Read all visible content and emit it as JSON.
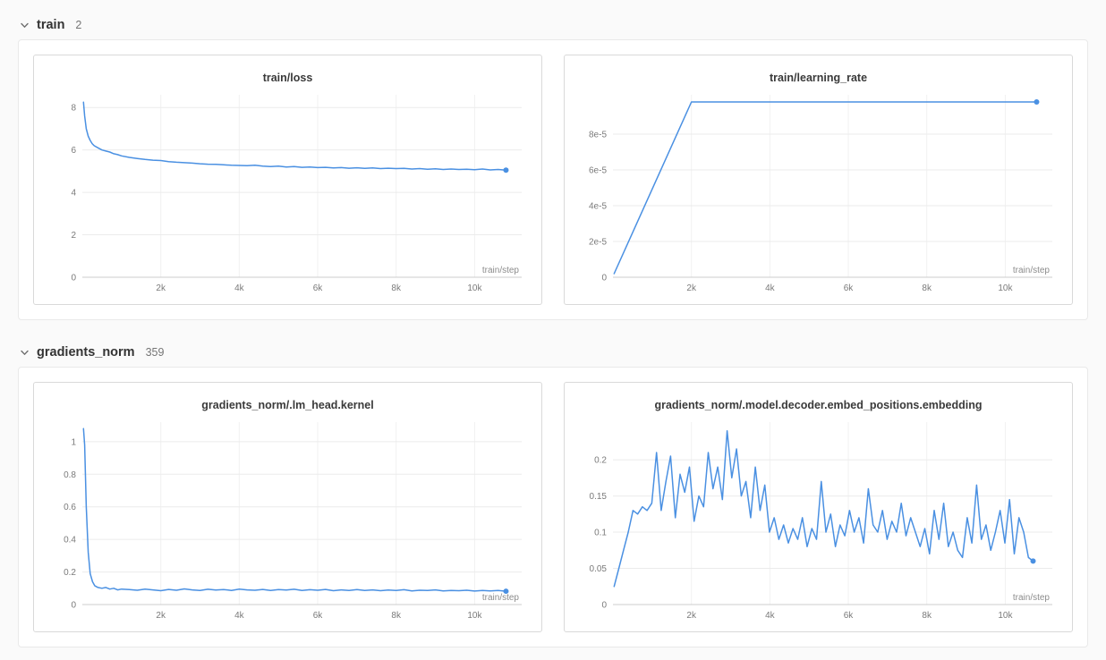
{
  "colors": {
    "accent": "#4a90e2",
    "grid": "#ebebeb",
    "axis": "#cccccc",
    "tick_text": "#7a7a7a"
  },
  "sections": [
    {
      "label": "train",
      "count": "2"
    },
    {
      "label": "gradients_norm",
      "count": "359"
    }
  ],
  "chart_data": [
    {
      "type": "line",
      "title": "train/loss",
      "xlabel": "train/step",
      "color": "#4a90e2",
      "grid": true,
      "end_marker": true,
      "xlim": [
        0,
        11200
      ],
      "ylim": [
        0,
        8.6
      ],
      "xticks": {
        "values": [
          2000,
          4000,
          6000,
          8000,
          10000
        ],
        "labels": [
          "2k",
          "4k",
          "6k",
          "8k",
          "10k"
        ]
      },
      "yticks": {
        "values": [
          0,
          2,
          4,
          6,
          8
        ],
        "labels": [
          "0",
          "2",
          "4",
          "6",
          "8"
        ]
      },
      "x": [
        30,
        60,
        100,
        150,
        200,
        250,
        300,
        400,
        500,
        600,
        700,
        800,
        900,
        1000,
        1200,
        1400,
        1600,
        1800,
        2000,
        2200,
        2400,
        2600,
        2800,
        3000,
        3200,
        3400,
        3600,
        3800,
        4000,
        4200,
        4400,
        4600,
        4800,
        5000,
        5200,
        5400,
        5600,
        5800,
        6000,
        6200,
        6400,
        6600,
        6800,
        7000,
        7200,
        7400,
        7600,
        7800,
        8000,
        8200,
        8400,
        8600,
        8800,
        9000,
        9200,
        9400,
        9600,
        9800,
        10000,
        10200,
        10400,
        10600,
        10800
      ],
      "y": [
        8.25,
        7.6,
        7.0,
        6.65,
        6.45,
        6.3,
        6.2,
        6.1,
        6.0,
        5.95,
        5.9,
        5.82,
        5.78,
        5.72,
        5.65,
        5.6,
        5.55,
        5.52,
        5.5,
        5.45,
        5.42,
        5.4,
        5.38,
        5.35,
        5.33,
        5.32,
        5.3,
        5.28,
        5.27,
        5.26,
        5.28,
        5.24,
        5.22,
        5.24,
        5.2,
        5.22,
        5.18,
        5.2,
        5.17,
        5.18,
        5.15,
        5.17,
        5.14,
        5.16,
        5.13,
        5.15,
        5.12,
        5.14,
        5.12,
        5.13,
        5.1,
        5.12,
        5.09,
        5.11,
        5.08,
        5.1,
        5.08,
        5.09,
        5.07,
        5.1,
        5.06,
        5.08,
        5.05
      ]
    },
    {
      "type": "line",
      "title": "train/learning_rate",
      "xlabel": "train/step",
      "color": "#4a90e2",
      "grid": true,
      "end_marker": true,
      "xlim": [
        0,
        11200
      ],
      "ylim": [
        0,
        0.000102
      ],
      "xticks": {
        "values": [
          2000,
          4000,
          6000,
          8000,
          10000
        ],
        "labels": [
          "2k",
          "4k",
          "6k",
          "8k",
          "10k"
        ]
      },
      "yticks": {
        "values": [
          0,
          2e-05,
          4e-05,
          6e-05,
          8e-05
        ],
        "labels": [
          "0",
          "2e-5",
          "4e-5",
          "6e-5",
          "8e-5"
        ]
      },
      "x": [
        30,
        2000,
        10800
      ],
      "y": [
        2e-06,
        9.8e-05,
        9.8e-05
      ]
    },
    {
      "type": "line",
      "title": "gradients_norm/.lm_head.kernel",
      "xlabel": "train/step",
      "color": "#4a90e2",
      "grid": true,
      "end_marker": true,
      "xlim": [
        0,
        11200
      ],
      "ylim": [
        0,
        1.12
      ],
      "xticks": {
        "values": [
          2000,
          4000,
          6000,
          8000,
          10000
        ],
        "labels": [
          "2k",
          "4k",
          "6k",
          "8k",
          "10k"
        ]
      },
      "yticks": {
        "values": [
          0,
          0.2,
          0.4,
          0.6,
          0.8,
          1
        ],
        "labels": [
          "0",
          "0.2",
          "0.4",
          "0.6",
          "0.8",
          "1"
        ]
      },
      "x": [
        30,
        60,
        100,
        150,
        200,
        260,
        320,
        400,
        500,
        600,
        700,
        800,
        900,
        1000,
        1200,
        1400,
        1600,
        1800,
        2000,
        2200,
        2400,
        2600,
        2800,
        3000,
        3200,
        3400,
        3600,
        3800,
        4000,
        4200,
        4400,
        4600,
        4800,
        5000,
        5200,
        5400,
        5600,
        5800,
        6000,
        6200,
        6400,
        6600,
        6800,
        7000,
        7200,
        7400,
        7600,
        7800,
        8000,
        8200,
        8400,
        8600,
        8800,
        9000,
        9200,
        9400,
        9600,
        9800,
        10000,
        10200,
        10400,
        10600,
        10800
      ],
      "y": [
        1.08,
        0.98,
        0.6,
        0.32,
        0.19,
        0.14,
        0.115,
        0.105,
        0.1,
        0.105,
        0.095,
        0.1,
        0.09,
        0.095,
        0.092,
        0.088,
        0.095,
        0.09,
        0.085,
        0.093,
        0.088,
        0.096,
        0.09,
        0.086,
        0.094,
        0.089,
        0.092,
        0.087,
        0.095,
        0.09,
        0.088,
        0.093,
        0.086,
        0.092,
        0.089,
        0.094,
        0.087,
        0.091,
        0.088,
        0.093,
        0.085,
        0.09,
        0.087,
        0.092,
        0.086,
        0.09,
        0.085,
        0.089,
        0.086,
        0.091,
        0.084,
        0.088,
        0.086,
        0.09,
        0.084,
        0.087,
        0.085,
        0.088,
        0.083,
        0.086,
        0.084,
        0.087,
        0.082
      ]
    },
    {
      "type": "line",
      "title": "gradients_norm/.model.decoder.embed_positions.embedding",
      "xlabel": "train/step",
      "color": "#4a90e2",
      "grid": true,
      "end_marker": true,
      "xlim": [
        0,
        11200
      ],
      "ylim": [
        0,
        0.252
      ],
      "xticks": {
        "values": [
          2000,
          4000,
          6000,
          8000,
          10000
        ],
        "labels": [
          "2k",
          "4k",
          "6k",
          "8k",
          "10k"
        ]
      },
      "yticks": {
        "values": [
          0,
          0.05,
          0.1,
          0.15,
          0.2
        ],
        "labels": [
          "0",
          "0.05",
          "0.1",
          "0.15",
          "0.2"
        ]
      },
      "x": [
        30,
        150,
        270,
        390,
        510,
        630,
        750,
        870,
        990,
        1110,
        1230,
        1350,
        1470,
        1590,
        1710,
        1830,
        1950,
        2070,
        2190,
        2310,
        2430,
        2550,
        2670,
        2790,
        2910,
        3030,
        3150,
        3270,
        3390,
        3510,
        3630,
        3750,
        3870,
        3990,
        4110,
        4230,
        4350,
        4470,
        4590,
        4710,
        4830,
        4950,
        5070,
        5190,
        5310,
        5430,
        5550,
        5670,
        5790,
        5910,
        6030,
        6150,
        6270,
        6390,
        6510,
        6630,
        6750,
        6870,
        6990,
        7110,
        7230,
        7350,
        7470,
        7590,
        7710,
        7830,
        7950,
        8070,
        8190,
        8310,
        8430,
        8550,
        8670,
        8790,
        8910,
        9030,
        9150,
        9270,
        9390,
        9510,
        9630,
        9750,
        9870,
        9990,
        10110,
        10230,
        10350,
        10470,
        10590,
        10710
      ],
      "y": [
        0.025,
        0.05,
        0.075,
        0.1,
        0.13,
        0.125,
        0.135,
        0.13,
        0.14,
        0.21,
        0.13,
        0.17,
        0.205,
        0.12,
        0.18,
        0.155,
        0.19,
        0.115,
        0.15,
        0.135,
        0.21,
        0.16,
        0.19,
        0.145,
        0.24,
        0.175,
        0.215,
        0.15,
        0.17,
        0.12,
        0.19,
        0.13,
        0.165,
        0.1,
        0.12,
        0.09,
        0.11,
        0.085,
        0.105,
        0.09,
        0.12,
        0.08,
        0.105,
        0.09,
        0.17,
        0.1,
        0.125,
        0.08,
        0.11,
        0.095,
        0.13,
        0.1,
        0.12,
        0.085,
        0.16,
        0.11,
        0.1,
        0.13,
        0.09,
        0.115,
        0.1,
        0.14,
        0.095,
        0.12,
        0.1,
        0.08,
        0.105,
        0.07,
        0.13,
        0.09,
        0.14,
        0.08,
        0.1,
        0.075,
        0.065,
        0.12,
        0.085,
        0.165,
        0.09,
        0.11,
        0.075,
        0.1,
        0.13,
        0.085,
        0.145,
        0.07,
        0.12,
        0.1,
        0.065,
        0.06
      ]
    }
  ]
}
